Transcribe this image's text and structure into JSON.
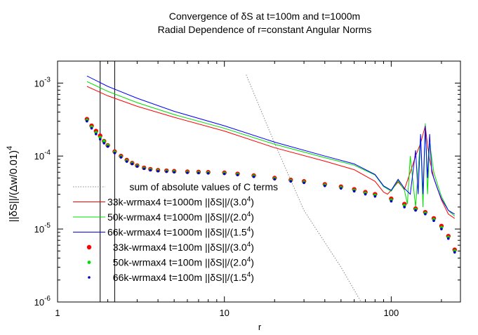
{
  "chart_data": {
    "type": "line",
    "title": [
      "Convergence of δS at t=100m and t=1000m",
      "Radial Dependence of r=constant Angular Norms"
    ],
    "xlabel": "r",
    "ylabel": "||δS||/(Δw/0.01)",
    "ylabel_sup": "4",
    "xscale": "log",
    "yscale": "log",
    "xlim": [
      1,
      260
    ],
    "ylim": [
      1e-06,
      0.002
    ],
    "x_ticks": [
      {
        "v": 1,
        "label": "1"
      },
      {
        "v": 10,
        "label": "10"
      },
      {
        "v": 100,
        "label": "100"
      }
    ],
    "y_ticks": [
      {
        "v": 1e-06,
        "base": "10",
        "exp": "-6"
      },
      {
        "v": 1e-05,
        "base": "10",
        "exp": "-5"
      },
      {
        "v": 0.0001,
        "base": "10",
        "exp": "-4"
      },
      {
        "v": 0.001,
        "base": "10",
        "exp": "-3"
      }
    ],
    "vertical_lines": [
      1.8,
      2.2
    ],
    "series": [
      {
        "name": "sum of absolute values of C terms",
        "style": "dotted",
        "color": "#888888",
        "x": [
          13.5,
          20,
          30,
          50,
          66
        ],
        "y": [
          0.0013,
          0.00015,
          1.8e-05,
          3e-06,
          1e-06
        ]
      },
      {
        "name": "33k-wrmax4 t=1000m",
        "norm_prefix": "||δS||/(3.0",
        "norm_exp": "4",
        "norm_suffix": ")",
        "style": "line",
        "color": "#ff0000",
        "x": [
          1.5,
          2,
          3,
          5,
          10,
          20,
          40,
          60,
          80,
          90,
          95,
          100,
          110,
          120,
          130,
          140,
          150,
          160,
          165,
          170,
          180,
          190,
          200,
          220,
          240
        ],
        "y": [
          0.0009,
          0.00067,
          0.00048,
          0.00034,
          0.00022,
          0.00013,
          8.5e-05,
          6.5e-05,
          4.5e-05,
          3.2e-05,
          3e-05,
          3.4e-05,
          4.4e-05,
          3.5e-05,
          6e-05,
          0.0001,
          0.00015,
          0.00026,
          0.00014,
          9e-05,
          5e-05,
          3.5e-05,
          2.5e-05,
          1.6e-05,
          1.4e-05
        ]
      },
      {
        "name": "50k-wrmax4 t=1000m",
        "norm_prefix": "||δS||/(2.0",
        "norm_exp": "4",
        "norm_suffix": ")",
        "style": "line",
        "color": "#00dd00",
        "x": [
          1.5,
          2,
          3,
          5,
          10,
          20,
          40,
          60,
          80,
          90,
          100,
          110,
          120,
          125,
          130,
          140,
          150,
          155,
          160,
          165,
          170,
          180,
          190,
          200,
          220,
          240
        ],
        "y": [
          0.00105,
          0.00077,
          0.00054,
          0.00037,
          0.00024,
          0.000145,
          9.5e-05,
          7.5e-05,
          5.5e-05,
          3.8e-05,
          3.3e-05,
          4.6e-05,
          3.4e-05,
          2.2e-05,
          0.0001,
          2e-05,
          0.00019,
          2e-05,
          0.00028,
          3e-05,
          0.00015,
          6e-05,
          4e-05,
          2.8e-05,
          1.8e-05,
          1.5e-05
        ]
      },
      {
        "name": "66k-wrmax4 t=1000m",
        "norm_prefix": "||δS||/(1.5",
        "norm_exp": "4",
        "norm_suffix": ")",
        "style": "line",
        "color": "#0000ff",
        "x": [
          1.5,
          2,
          3,
          5,
          10,
          20,
          40,
          60,
          80,
          90,
          100,
          110,
          120,
          130,
          140,
          145,
          150,
          155,
          160,
          165,
          170,
          175,
          180,
          190,
          200,
          220,
          240
        ],
        "y": [
          0.00125,
          0.0009,
          0.00062,
          0.00041,
          0.00026,
          0.000155,
          0.0001,
          7.8e-05,
          5.6e-05,
          3.9e-05,
          3.4e-05,
          4.8e-05,
          3.6e-05,
          3e-05,
          0.00012,
          3e-05,
          0.0002,
          3e-05,
          0.00026,
          5e-05,
          0.0002,
          6e-05,
          5e-05,
          3.5e-05,
          2.6e-05,
          1.8e-05,
          1.6e-05
        ]
      },
      {
        "name": "33k-wrmax4 t=100m",
        "norm_prefix": "||δS||/(3.0",
        "norm_exp": "4",
        "norm_suffix": ")",
        "style": "points",
        "color": "#ff0000",
        "size": 3.2,
        "x": [
          1.5,
          1.6,
          1.7,
          1.8,
          1.9,
          2.0,
          2.2,
          2.4,
          2.6,
          2.8,
          3.0,
          3.3,
          3.6,
          4,
          4.5,
          5,
          6,
          7,
          8,
          10,
          12,
          15,
          20,
          25,
          30,
          40,
          50,
          60,
          70,
          80,
          100,
          120,
          140,
          160,
          180,
          200,
          220,
          240
        ],
        "y": [
          0.00032,
          0.00026,
          0.00022,
          0.00019,
          0.00016,
          0.00014,
          0.000115,
          0.0001,
          8.8e-05,
          8e-05,
          7.4e-05,
          6.9e-05,
          6.6e-05,
          6.4e-05,
          6.3e-05,
          6.2e-05,
          6.1e-05,
          6.05e-05,
          6e-05,
          5.9e-05,
          5.7e-05,
          5.4e-05,
          5e-05,
          4.7e-05,
          4.5e-05,
          4.1e-05,
          3.8e-05,
          3.5e-05,
          3.2e-05,
          3e-05,
          2.6e-05,
          2.2e-05,
          1.9e-05,
          1.7e-05,
          1.4e-05,
          1.1e-05,
          8e-06,
          5.2e-06
        ]
      },
      {
        "name": "50k-wrmax4 t=100m",
        "norm_prefix": "||δS||/(2.0",
        "norm_exp": "4",
        "norm_suffix": ")",
        "style": "points",
        "color": "#00dd00",
        "size": 2.4,
        "x": [
          1.5,
          1.6,
          1.7,
          1.8,
          1.9,
          2.0,
          2.2,
          2.4,
          2.6,
          2.8,
          3.0,
          3.3,
          3.6,
          4,
          4.5,
          5,
          6,
          7,
          8,
          10,
          12,
          15,
          20,
          25,
          30,
          40,
          50,
          60,
          70,
          80,
          100,
          120,
          140,
          160,
          180,
          200,
          220,
          240
        ],
        "y": [
          0.00031,
          0.00025,
          0.00021,
          0.00018,
          0.00016,
          0.00014,
          0.000113,
          9.8e-05,
          8.6e-05,
          7.9e-05,
          7.3e-05,
          6.8e-05,
          6.5e-05,
          6.3e-05,
          6.2e-05,
          6.1e-05,
          6e-05,
          5.95e-05,
          5.9e-05,
          5.8e-05,
          5.6e-05,
          5.3e-05,
          4.9e-05,
          4.6e-05,
          4.4e-05,
          4e-05,
          3.7e-05,
          3.4e-05,
          3.1e-05,
          2.9e-05,
          2.5e-05,
          2.1e-05,
          1.85e-05,
          1.65e-05,
          1.35e-05,
          1.05e-05,
          7.7e-06,
          5e-06
        ]
      },
      {
        "name": "66k-wrmax4 t=100m",
        "norm_prefix": "||δS||/(1.5",
        "norm_exp": "4",
        "norm_suffix": ")",
        "style": "points",
        "color": "#0000cc",
        "size": 1.8,
        "x": [
          1.5,
          1.6,
          1.7,
          1.8,
          1.9,
          2.0,
          2.2,
          2.4,
          2.6,
          2.8,
          3.0,
          3.3,
          3.6,
          4,
          4.5,
          5,
          6,
          7,
          8,
          10,
          12,
          15,
          20,
          25,
          30,
          40,
          50,
          60,
          70,
          80,
          100,
          120,
          140,
          160,
          180,
          200,
          220,
          240
        ],
        "y": [
          0.0003,
          0.00024,
          0.0002,
          0.00017,
          0.00015,
          0.000135,
          0.00011,
          9.6e-05,
          8.4e-05,
          7.8e-05,
          7.2e-05,
          6.7e-05,
          6.4e-05,
          6.2e-05,
          6.1e-05,
          6e-05,
          5.9e-05,
          5.85e-05,
          5.8e-05,
          5.7e-05,
          5.5e-05,
          5.2e-05,
          4.8e-05,
          4.5e-05,
          4.3e-05,
          3.9e-05,
          3.6e-05,
          3.3e-05,
          3e-05,
          2.8e-05,
          2.4e-05,
          2e-05,
          1.8e-05,
          1.6e-05,
          1.3e-05,
          1e-05,
          7.4e-06,
          4.8e-06
        ]
      }
    ]
  }
}
